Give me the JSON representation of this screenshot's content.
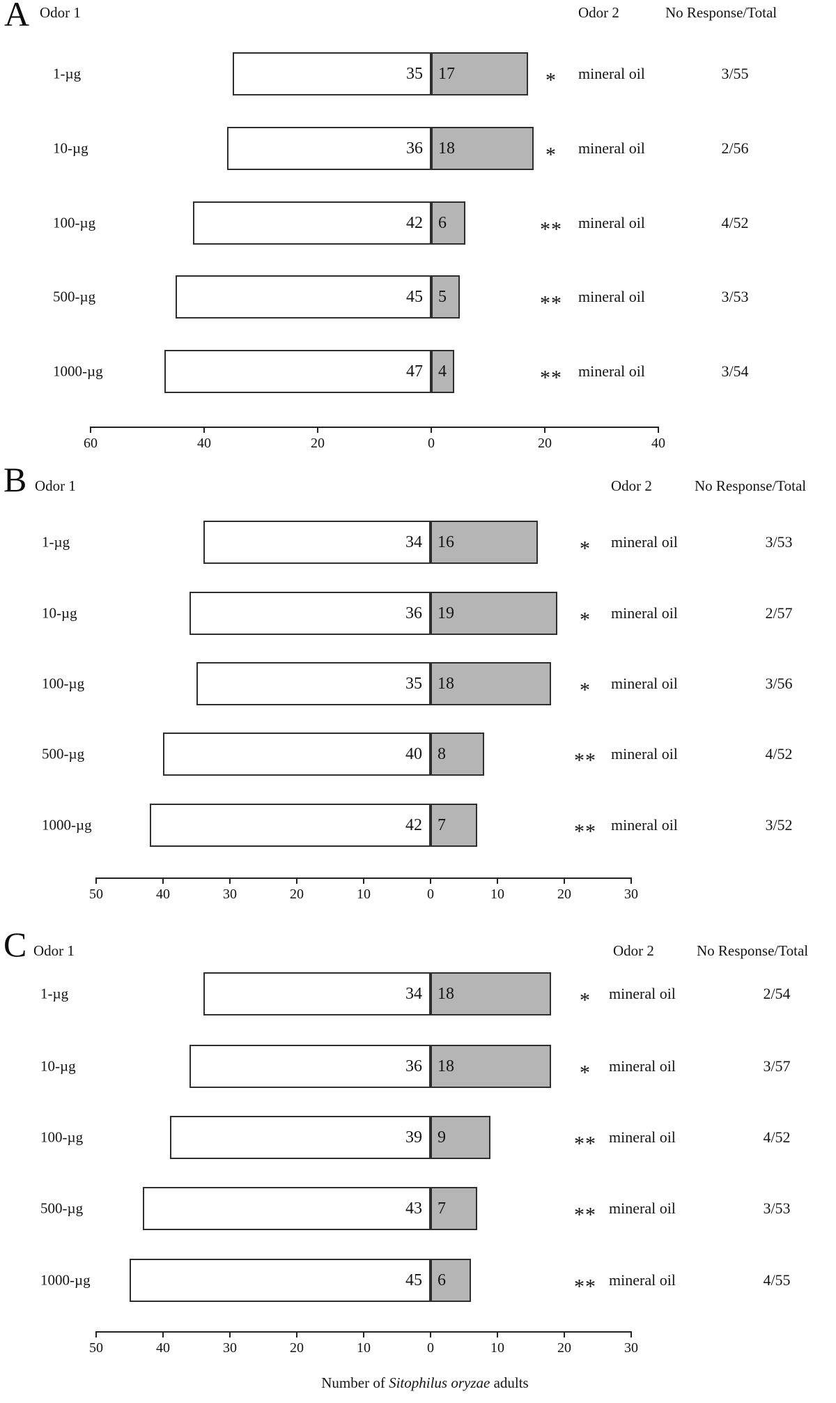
{
  "figure": {
    "xlabel": {
      "prefix": "Number of ",
      "species_italic": "Sitophilus oryzae",
      "suffix": " adults"
    }
  },
  "colors": {
    "odor1_bar_fill": "#ffffff",
    "odor2_bar_fill": "#b5b5b5",
    "bar_border": "#2e2e2e",
    "text": "#141414"
  },
  "chart_data": [
    {
      "type": "bar",
      "subtype": "horizontal-diverging-paired",
      "panel_label": "A",
      "headers": {
        "odor1": "Odor 1",
        "odor2": "Odor 2",
        "no_response": "No Response/Total"
      },
      "categories": [
        "1-µg",
        "10-µg",
        "100-µg",
        "500-µg",
        "1000-µg"
      ],
      "series": [
        {
          "name": "Odor 1 responders",
          "values": [
            35,
            36,
            42,
            45,
            47
          ]
        },
        {
          "name": "Odor 2 responders",
          "values": [
            17,
            18,
            6,
            5,
            4
          ]
        }
      ],
      "significance": [
        "*",
        "*",
        "**",
        "**",
        "**"
      ],
      "odor2_labels": [
        "mineral oil",
        "mineral oil",
        "mineral oil",
        "mineral oil",
        "mineral oil"
      ],
      "no_response_total": [
        "3/55",
        "2/56",
        "4/52",
        "3/53",
        "3/54"
      ],
      "axis": {
        "tick_values": [
          -60,
          -40,
          -20,
          0,
          20,
          40
        ],
        "tick_labels": [
          "60",
          "40",
          "20",
          "0",
          "20",
          "40"
        ],
        "left_max": 60,
        "right_max": 40,
        "grid": false
      }
    },
    {
      "type": "bar",
      "subtype": "horizontal-diverging-paired",
      "panel_label": "B",
      "headers": {
        "odor1": "Odor 1",
        "odor2": "Odor 2",
        "no_response": "No Response/Total"
      },
      "categories": [
        "1-µg",
        "10-µg",
        "100-µg",
        "500-µg",
        "1000-µg"
      ],
      "series": [
        {
          "name": "Odor 1 responders",
          "values": [
            34,
            36,
            35,
            40,
            42
          ]
        },
        {
          "name": "Odor 2 responders",
          "values": [
            16,
            19,
            18,
            8,
            7
          ]
        }
      ],
      "significance": [
        "*",
        "*",
        "*",
        "**",
        "**"
      ],
      "odor2_labels": [
        "mineral oil",
        "mineral oil",
        "mineral oil",
        "mineral oil",
        "mineral oil"
      ],
      "no_response_total": [
        "3/53",
        "2/57",
        "3/56",
        "4/52",
        "3/52"
      ],
      "axis": {
        "tick_values": [
          -50,
          -40,
          -30,
          -20,
          -10,
          0,
          10,
          20,
          30
        ],
        "tick_labels": [
          "50",
          "40",
          "30",
          "20",
          "10",
          "0",
          "10",
          "20",
          "30"
        ],
        "left_max": 50,
        "right_max": 30,
        "grid": false
      }
    },
    {
      "type": "bar",
      "subtype": "horizontal-diverging-paired",
      "panel_label": "C",
      "headers": {
        "odor1": "Odor 1",
        "odor2": "Odor 2",
        "no_response": "No Response/Total"
      },
      "categories": [
        "1-µg",
        "10-µg",
        "100-µg",
        "500-µg",
        "1000-µg"
      ],
      "series": [
        {
          "name": "Odor 1 responders",
          "values": [
            34,
            36,
            39,
            43,
            45
          ]
        },
        {
          "name": "Odor 2 responders",
          "values": [
            18,
            18,
            9,
            7,
            6
          ]
        }
      ],
      "significance": [
        "*",
        "*",
        "**",
        "**",
        "**"
      ],
      "odor2_labels": [
        "mineral oil",
        "mineral oil",
        "mineral oil",
        "mineral oil",
        "mineral oil"
      ],
      "no_response_total": [
        "2/54",
        "3/57",
        "4/52",
        "3/53",
        "4/55"
      ],
      "axis": {
        "tick_values": [
          -50,
          -40,
          -30,
          -20,
          -10,
          0,
          10,
          20,
          30
        ],
        "tick_labels": [
          "50",
          "40",
          "30",
          "20",
          "10",
          "0",
          "10",
          "20",
          "30"
        ],
        "left_max": 50,
        "right_max": 30,
        "grid": false
      }
    }
  ]
}
